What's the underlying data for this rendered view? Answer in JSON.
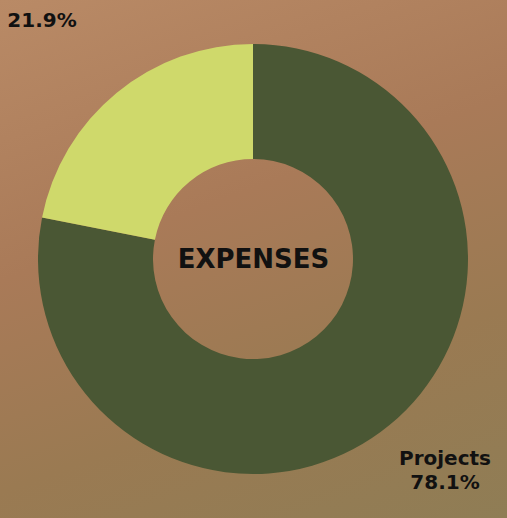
{
  "chart_data": {
    "type": "pie",
    "title": "EXPENSES",
    "categories": [
      "Projects",
      null
    ],
    "values": [
      78.1,
      21.9
    ],
    "value_labels": [
      "78.1%",
      "21.9%"
    ],
    "colors": [
      "#4a5734",
      "#cfd96b"
    ],
    "data_labels": true
  }
}
